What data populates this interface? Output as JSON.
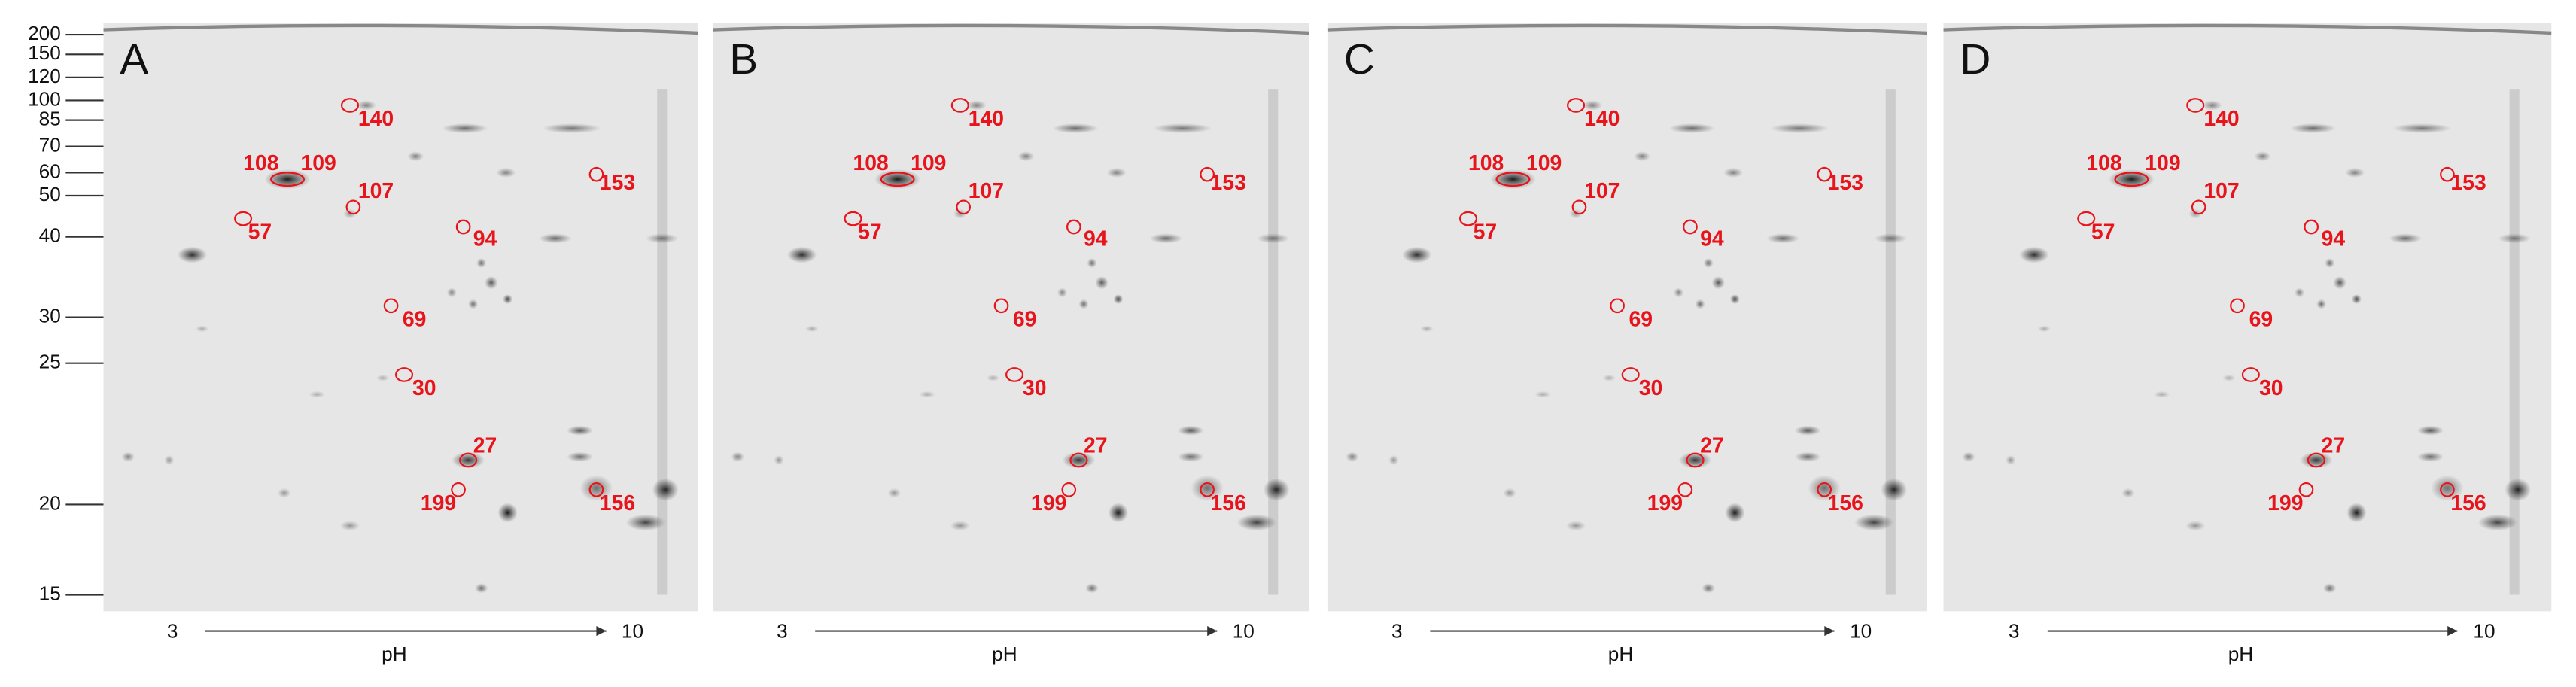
{
  "panels": [
    "A",
    "B",
    "C",
    "D"
  ],
  "mw_markers": [
    "200",
    "150",
    "120",
    "100",
    "85",
    "70",
    "60",
    "50",
    "40",
    "30",
    "25",
    "20",
    "15"
  ],
  "spots": [
    "140",
    "108",
    "109",
    "107",
    "153",
    "57",
    "94",
    "69",
    "30",
    "27",
    "199",
    "156"
  ],
  "ph_axis": {
    "start": "3",
    "end": "10",
    "label": "pH"
  }
}
